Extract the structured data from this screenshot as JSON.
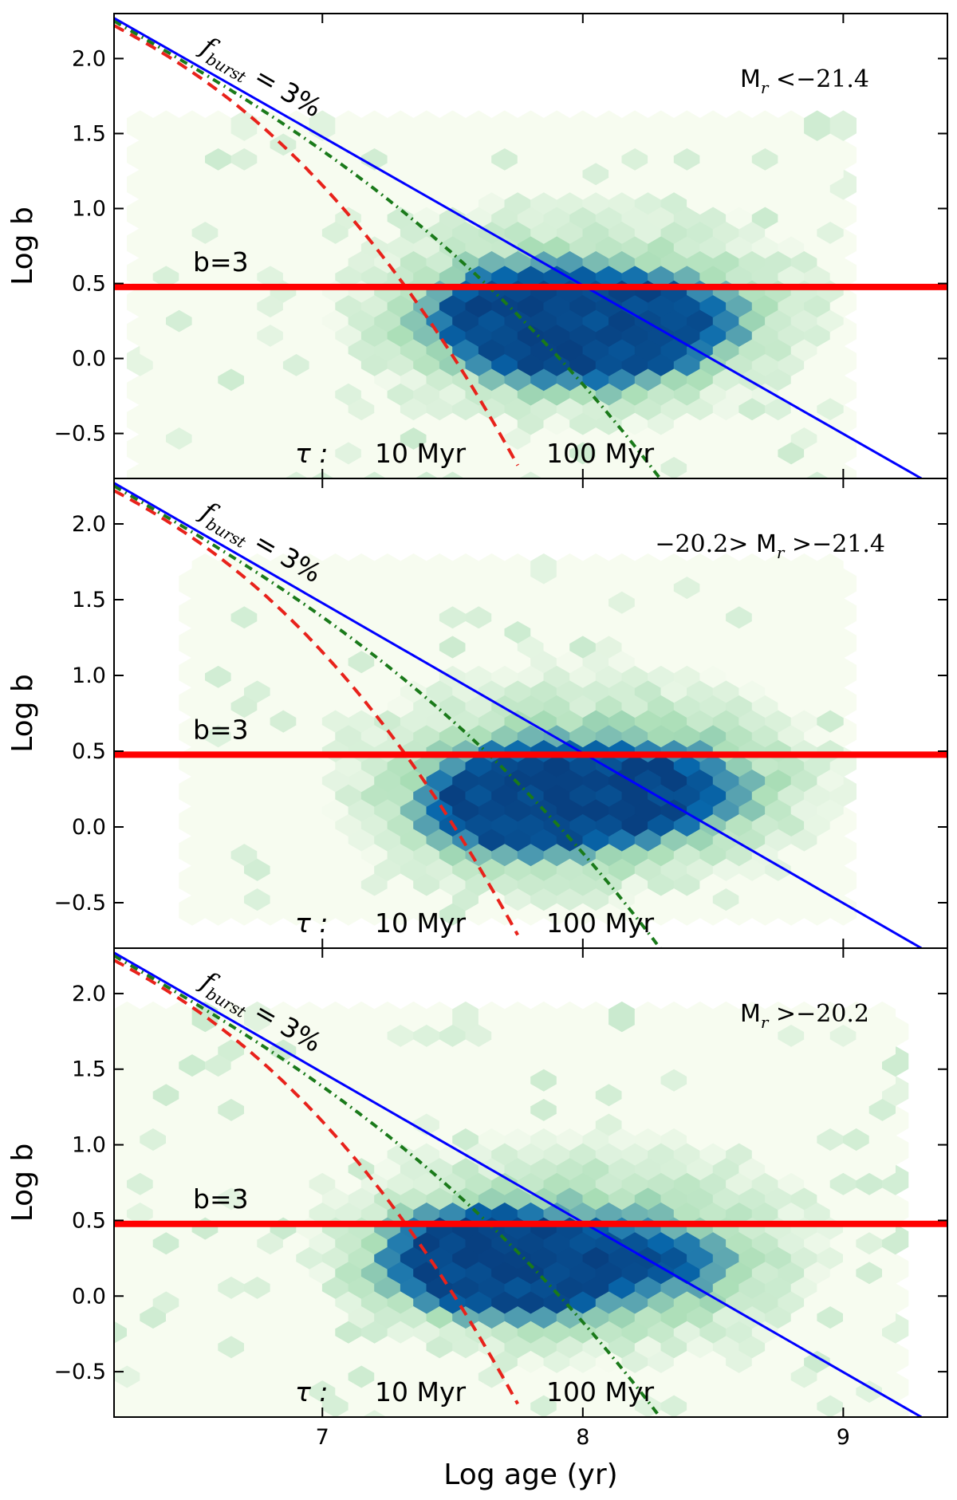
{
  "chart_data": [
    {
      "type": "hexbin",
      "panel_label": "M_r <−21.4",
      "xlabel": "",
      "ylabel": "Log b",
      "xlim": [
        6.2,
        9.4
      ],
      "ylim": [
        -0.8,
        2.3
      ],
      "x_ticks": [
        7,
        8,
        9
      ],
      "y_ticks": [
        -0.5,
        0.0,
        0.5,
        1.0,
        1.5,
        2.0
      ],
      "y_tick_labels": [
        "−0.5",
        "0.0",
        "0.5",
        "1.0",
        "1.5",
        "2.0"
      ],
      "x_tick_labels": [
        "",
        "",
        ""
      ],
      "density_peaks": [
        {
          "x": 7.75,
          "y": 0.32,
          "value": 1.0
        },
        {
          "x": 7.9,
          "y": 0.22,
          "value": 0.8
        },
        {
          "x": 8.3,
          "y": 0.3,
          "value": 0.75
        },
        {
          "x": 8.1,
          "y": 0.12,
          "value": 0.6
        }
      ],
      "annotations": {
        "b_line": "b=3",
        "f_burst": "f_burst = 3%",
        "tau_label": "τ :",
        "tau_10": "10 Myr",
        "tau_100": "100 Myr"
      }
    },
    {
      "type": "hexbin",
      "panel_label": "−20.2> M_r >−21.4",
      "xlabel": "",
      "ylabel": "Log b",
      "xlim": [
        6.2,
        9.4
      ],
      "ylim": [
        -0.8,
        2.3
      ],
      "x_ticks": [
        7,
        8,
        9
      ],
      "y_ticks": [
        -0.5,
        0.0,
        0.5,
        1.0,
        1.5,
        2.0
      ],
      "y_tick_labels": [
        "−0.5",
        "0.0",
        "0.5",
        "1.0",
        "1.5",
        "2.0"
      ],
      "x_tick_labels": [
        "",
        "",
        ""
      ],
      "density_peaks": [
        {
          "x": 7.8,
          "y": 0.28,
          "value": 1.0
        },
        {
          "x": 7.7,
          "y": 0.1,
          "value": 0.7
        },
        {
          "x": 8.35,
          "y": 0.28,
          "value": 0.7
        },
        {
          "x": 8.05,
          "y": 0.15,
          "value": 0.55
        }
      ],
      "annotations": {
        "b_line": "b=3",
        "f_burst": "f_burst = 3%",
        "tau_label": "τ :",
        "tau_10": "10 Myr",
        "tau_100": "100 Myr"
      }
    },
    {
      "type": "hexbin",
      "panel_label": "M_r >−20.2",
      "xlabel": "Log age (yr)",
      "ylabel": "Log b",
      "xlim": [
        6.2,
        9.4
      ],
      "ylim": [
        -0.8,
        2.3
      ],
      "x_ticks": [
        7,
        8,
        9
      ],
      "y_ticks": [
        -0.5,
        0.0,
        0.5,
        1.0,
        1.5,
        2.0
      ],
      "y_tick_labels": [
        "−0.5",
        "0.0",
        "0.5",
        "1.0",
        "1.5",
        "2.0"
      ],
      "x_tick_labels": [
        "7",
        "8",
        "9"
      ],
      "density_peaks": [
        {
          "x": 7.78,
          "y": 0.22,
          "value": 1.0
        },
        {
          "x": 7.65,
          "y": 0.25,
          "value": 0.75
        },
        {
          "x": 8.3,
          "y": 0.25,
          "value": 0.55
        },
        {
          "x": 7.5,
          "y": 0.3,
          "value": 0.5
        }
      ],
      "annotations": {
        "b_line": "b=3",
        "f_burst": "f_burst = 3%",
        "tau_label": "τ :",
        "tau_10": "10 Myr",
        "tau_100": "100 Myr"
      }
    }
  ],
  "lines": {
    "b3_level": 0.477,
    "b3_color": "#ff0000",
    "fburst_color": "#0000ff",
    "fburst_line": {
      "x": [
        6.2,
        9.3
      ],
      "y": [
        2.27,
        -0.8
      ]
    },
    "tau10_color": "#e8221b",
    "tau100_color": "#1a7a1a"
  },
  "colors": {
    "hex_low": "#f7fcf0",
    "hex_mid": "#a8ddb5",
    "hex_high": "#0868ac",
    "hex_max": "#084081"
  }
}
